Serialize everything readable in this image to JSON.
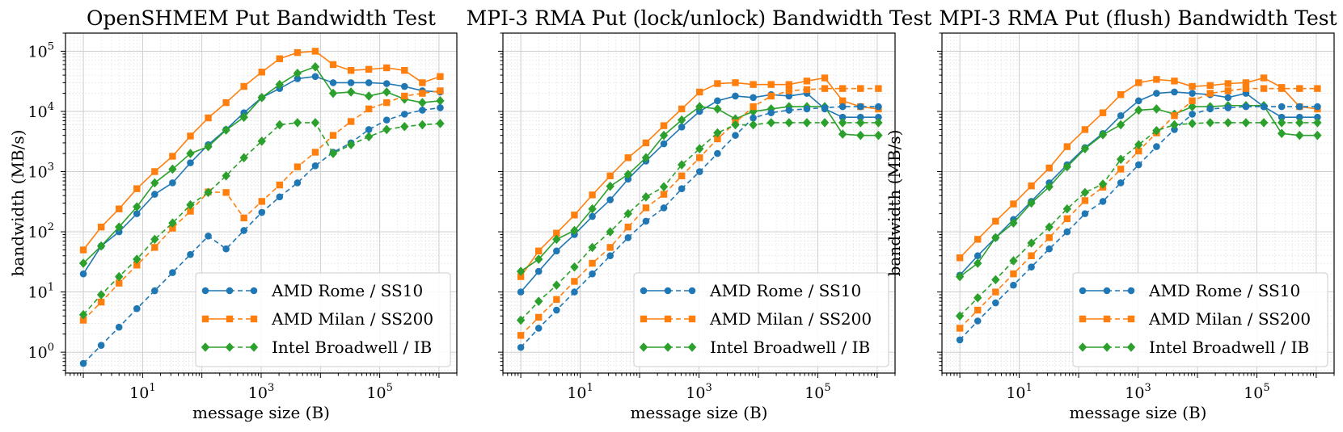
{
  "figure": {
    "colors": {
      "rome": "#1f77b4",
      "milan": "#ff7f0e",
      "broadwell": "#2ca02c"
    }
  },
  "chart_data": [
    {
      "type": "line",
      "title": "OpenSHMEM Put Bandwidth Test",
      "xlabel": "message size (B)",
      "ylabel": "bandwidth (MB/s)",
      "xscale": "log",
      "yscale": "log",
      "xlim": [
        0.5,
        2000000
      ],
      "ylim": [
        0.45,
        200000
      ],
      "x_ticks": [
        {
          "label": "10",
          "exp": "1",
          "value": 10
        },
        {
          "label": "10",
          "exp": "3",
          "value": 1000
        },
        {
          "label": "10",
          "exp": "5",
          "value": 100000
        }
      ],
      "y_ticks": [
        {
          "label": "10",
          "exp": "0",
          "value": 1
        },
        {
          "label": "10",
          "exp": "1",
          "value": 10
        },
        {
          "label": "10",
          "exp": "2",
          "value": 100
        },
        {
          "label": "10",
          "exp": "3",
          "value": 1000
        },
        {
          "label": "10",
          "exp": "4",
          "value": 10000
        },
        {
          "label": "10",
          "exp": "5",
          "value": 100000
        }
      ],
      "grid": true,
      "legend_position": "lower-right",
      "x": [
        1,
        2,
        4,
        8,
        16,
        32,
        64,
        128,
        256,
        512,
        1024,
        2048,
        4096,
        8192,
        16384,
        32768,
        65536,
        131072,
        262144,
        524288,
        1048576
      ],
      "series": [
        {
          "name": "AMD Rome / SS10",
          "key": "rome",
          "style": "solid",
          "marker": "circle",
          "values": [
            20,
            58,
            100,
            200,
            420,
            650,
            1400,
            2800,
            5000,
            9500,
            17000,
            24000,
            35000,
            38000,
            30000,
            30000,
            30000,
            29000,
            26000,
            22000,
            21000
          ]
        },
        {
          "name": "AMD Milan / SS200",
          "key": "milan",
          "style": "solid",
          "marker": "square",
          "values": [
            50,
            120,
            240,
            520,
            1000,
            1800,
            3900,
            7800,
            14000,
            26000,
            45000,
            75000,
            95000,
            100000,
            60000,
            48000,
            50000,
            53000,
            48000,
            30000,
            38000
          ]
        },
        {
          "name": "Intel Broadwell / IB",
          "key": "broadwell",
          "style": "solid",
          "marker": "diamond",
          "values": [
            30,
            58,
            120,
            260,
            650,
            1100,
            2000,
            2600,
            4900,
            8000,
            17000,
            28000,
            43000,
            55000,
            20000,
            21000,
            18000,
            21000,
            16000,
            14000,
            15000
          ]
        },
        {
          "name": "",
          "key": "rome",
          "style": "dashed",
          "marker": "circle",
          "values": [
            0.65,
            1.3,
            2.6,
            5.3,
            10.5,
            21,
            42,
            85,
            52,
            105,
            210,
            380,
            650,
            1250,
            2100,
            3000,
            5000,
            7200,
            9000,
            10500,
            11500
          ]
        },
        {
          "name": "",
          "key": "milan",
          "style": "dashed",
          "marker": "square",
          "values": [
            3.4,
            6.8,
            14,
            28,
            55,
            115,
            220,
            460,
            450,
            170,
            320,
            600,
            1200,
            2100,
            4000,
            6800,
            11000,
            14000,
            18000,
            20000,
            22000
          ]
        },
        {
          "name": "",
          "key": "broadwell",
          "style": "dashed",
          "marker": "diamond",
          "values": [
            4.2,
            9,
            18,
            35,
            75,
            140,
            280,
            450,
            850,
            1700,
            3200,
            6000,
            6500,
            6500,
            2000,
            2800,
            3800,
            5000,
            5600,
            6000,
            6300
          ]
        }
      ]
    },
    {
      "type": "line",
      "title": "MPI-3 RMA Put (lock/unlock) Bandwidth Test",
      "xlabel": "message size (B)",
      "ylabel": "",
      "xscale": "log",
      "yscale": "log",
      "xlim": [
        0.5,
        2000000
      ],
      "ylim": [
        0.45,
        200000
      ],
      "x_ticks": [
        {
          "label": "10",
          "exp": "1",
          "value": 10
        },
        {
          "label": "10",
          "exp": "3",
          "value": 1000
        },
        {
          "label": "10",
          "exp": "5",
          "value": 100000
        }
      ],
      "y_ticks": [],
      "grid": true,
      "legend_position": "lower-right",
      "x": [
        1,
        2,
        4,
        8,
        16,
        32,
        64,
        128,
        256,
        512,
        1024,
        2048,
        4096,
        8192,
        16384,
        32768,
        65536,
        131072,
        262144,
        524288,
        1048576
      ],
      "series": [
        {
          "name": "AMD Rome / SS10",
          "key": "rome",
          "style": "solid",
          "marker": "circle",
          "values": [
            10,
            22,
            48,
            90,
            180,
            340,
            750,
            1500,
            2900,
            5500,
            10000,
            15000,
            18000,
            17000,
            19000,
            18000,
            20000,
            11000,
            8000,
            8000,
            8000
          ]
        },
        {
          "name": "AMD Milan / SS200",
          "key": "milan",
          "style": "solid",
          "marker": "square",
          "values": [
            18,
            48,
            95,
            190,
            410,
            850,
            1700,
            3000,
            5800,
            11000,
            21000,
            29000,
            30000,
            28000,
            28000,
            28000,
            32000,
            36000,
            15000,
            12000,
            11000
          ]
        },
        {
          "name": "Intel Broadwell / IB",
          "key": "broadwell",
          "style": "solid",
          "marker": "diamond",
          "values": [
            22,
            35,
            75,
            105,
            240,
            570,
            900,
            1700,
            4000,
            7200,
            12000,
            11000,
            7500,
            10000,
            11000,
            12000,
            12000,
            12000,
            4200,
            4000,
            4000
          ]
        },
        {
          "name": "",
          "key": "rome",
          "style": "dashed",
          "marker": "circle",
          "values": [
            1.2,
            2.5,
            5,
            10,
            20,
            40,
            80,
            150,
            250,
            520,
            1000,
            2000,
            4000,
            7800,
            9500,
            10500,
            11000,
            11500,
            12000,
            12000,
            12000
          ]
        },
        {
          "name": "",
          "key": "milan",
          "style": "dashed",
          "marker": "square",
          "values": [
            1.9,
            3.8,
            7.5,
            15,
            30,
            55,
            120,
            250,
            420,
            850,
            1700,
            3500,
            6500,
            12000,
            18000,
            22000,
            23000,
            24000,
            24000,
            24000,
            24000
          ]
        },
        {
          "name": "",
          "key": "broadwell",
          "style": "dashed",
          "marker": "diamond",
          "values": [
            3.4,
            7,
            13,
            26,
            55,
            100,
            200,
            380,
            560,
            1300,
            2400,
            4400,
            6000,
            6000,
            6500,
            6500,
            6500,
            6500,
            6500,
            6500,
            6500
          ]
        }
      ]
    },
    {
      "type": "line",
      "title": "MPI-3 RMA Put (flush) Bandwidth Test",
      "xlabel": "message size (B)",
      "ylabel": "bandwidth (MB/s)",
      "xscale": "log",
      "yscale": "log",
      "xlim": [
        0.5,
        2000000
      ],
      "ylim": [
        0.45,
        200000
      ],
      "x_ticks": [
        {
          "label": "10",
          "exp": "1",
          "value": 10
        },
        {
          "label": "10",
          "exp": "3",
          "value": 1000
        },
        {
          "label": "10",
          "exp": "5",
          "value": 100000
        }
      ],
      "y_ticks": [],
      "grid": true,
      "legend_position": "lower-right",
      "x": [
        1,
        2,
        4,
        8,
        16,
        32,
        64,
        128,
        256,
        512,
        1024,
        2048,
        4096,
        8192,
        16384,
        32768,
        65536,
        131072,
        262144,
        524288,
        1048576
      ],
      "series": [
        {
          "name": "AMD Rome / SS10",
          "key": "rome",
          "style": "solid",
          "marker": "circle",
          "values": [
            19,
            40,
            80,
            160,
            320,
            650,
            1300,
            2500,
            4300,
            8500,
            15000,
            20000,
            21000,
            20000,
            19000,
            17000,
            20000,
            12000,
            8000,
            8000,
            8000
          ]
        },
        {
          "name": "AMD Milan / SS200",
          "key": "milan",
          "style": "solid",
          "marker": "square",
          "values": [
            37,
            75,
            150,
            290,
            580,
            1150,
            2600,
            5000,
            9500,
            19000,
            30000,
            34000,
            32000,
            26000,
            27000,
            29000,
            30000,
            36000,
            25000,
            12000,
            11000
          ]
        },
        {
          "name": "Intel Broadwell / IB",
          "key": "broadwell",
          "style": "solid",
          "marker": "diamond",
          "values": [
            18,
            30,
            80,
            140,
            300,
            560,
            1200,
            2400,
            4100,
            6000,
            10500,
            11000,
            9000,
            12000,
            12000,
            12500,
            12500,
            12500,
            4300,
            4000,
            4000
          ]
        },
        {
          "name": "",
          "key": "rome",
          "style": "dashed",
          "marker": "circle",
          "values": [
            1.6,
            3.3,
            6.6,
            13,
            26,
            52,
            100,
            200,
            320,
            650,
            1300,
            2600,
            5000,
            9000,
            11000,
            11500,
            12000,
            12000,
            12000,
            12000,
            12000
          ]
        },
        {
          "name": "",
          "key": "milan",
          "style": "dashed",
          "marker": "square",
          "values": [
            2.5,
            5,
            10,
            20,
            40,
            80,
            165,
            330,
            550,
            1100,
            2200,
            4400,
            8500,
            15000,
            20000,
            22000,
            24000,
            24000,
            24000,
            24000,
            24000
          ]
        },
        {
          "name": "",
          "key": "broadwell",
          "style": "dashed",
          "marker": "diamond",
          "values": [
            4,
            8,
            16,
            33,
            65,
            120,
            240,
            450,
            620,
            1600,
            2800,
            4800,
            6000,
            6300,
            6500,
            6500,
            6500,
            6500,
            6500,
            6500,
            6500
          ]
        }
      ]
    }
  ]
}
